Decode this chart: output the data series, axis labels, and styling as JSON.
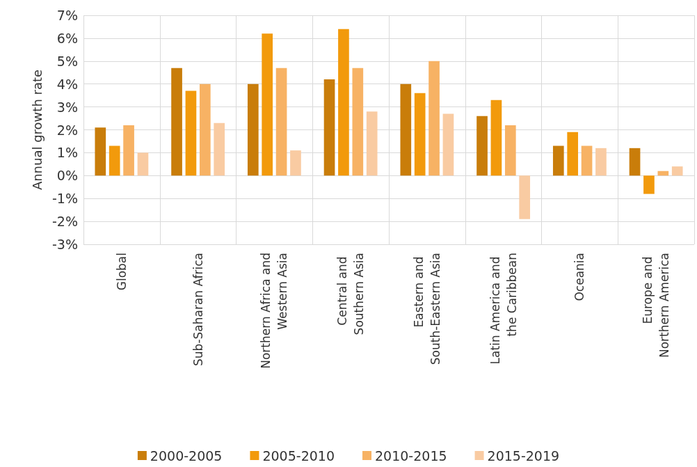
{
  "chart_data": {
    "type": "bar",
    "ylabel": "Annual growth rate",
    "categories": [
      "Global",
      "Sub-Saharan Africa",
      "Northern Africa and Western Asia",
      "Central and Southern Asia",
      "Eastern and South-Eastern Asia",
      "Latin America and the Caribbean",
      "Oceania",
      "Europe and Northern America"
    ],
    "series": [
      {
        "name": "2000-2005",
        "color": "#c97d0a",
        "values": [
          2.1,
          4.7,
          4.0,
          4.2,
          4.0,
          2.6,
          1.3,
          1.2
        ]
      },
      {
        "name": "2005-2010",
        "color": "#f29a0c",
        "values": [
          1.3,
          3.7,
          6.2,
          6.4,
          3.6,
          3.3,
          1.9,
          -0.8
        ]
      },
      {
        "name": "2010-2015",
        "color": "#f7b264",
        "values": [
          2.2,
          4.0,
          4.7,
          4.7,
          5.0,
          2.2,
          1.3,
          0.2
        ]
      },
      {
        "name": "2015-2019",
        "color": "#f9cba2",
        "values": [
          1.0,
          2.3,
          1.1,
          2.8,
          2.7,
          -1.9,
          1.2,
          0.4
        ]
      }
    ],
    "ylim": [
      -3,
      7
    ],
    "yticks": [
      {
        "value": -3,
        "label": "-3%"
      },
      {
        "value": -2,
        "label": "-2%"
      },
      {
        "value": -1,
        "label": "-1%"
      },
      {
        "value": 0,
        "label": "0%"
      },
      {
        "value": 1,
        "label": "1%"
      },
      {
        "value": 2,
        "label": "2%"
      },
      {
        "value": 3,
        "label": "3%"
      },
      {
        "value": 4,
        "label": "4%"
      },
      {
        "value": 5,
        "label": "5%"
      },
      {
        "value": 6,
        "label": "6%"
      },
      {
        "value": 7,
        "label": "7%"
      }
    ],
    "grid": true,
    "legend": "bottom"
  }
}
